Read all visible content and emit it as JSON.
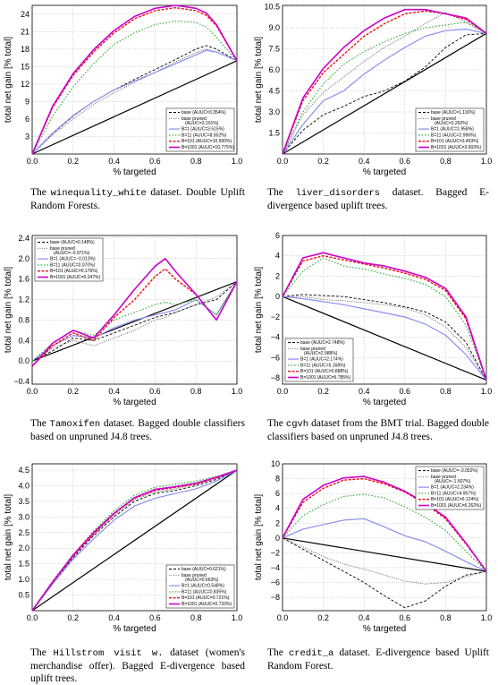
{
  "legend_names": [
    "base",
    "base pruned",
    "B=1",
    "B=11",
    "B=101",
    "B=1001"
  ],
  "series_styles": [
    {
      "color": "#000000",
      "dash": "3,2",
      "width": 0.9
    },
    {
      "color": "#555555",
      "dash": "1,1.5",
      "width": 0.9
    },
    {
      "color": "#8a8ff0",
      "dash": "",
      "width": 1.2
    },
    {
      "color": "#22aa22",
      "dash": "1.5,2",
      "width": 1.1
    },
    {
      "color": "#ee1111",
      "dash": "3,1.5",
      "width": 1.4
    },
    {
      "color": "#cc00cc",
      "dash": "",
      "width": 1.6
    }
  ],
  "captions": [
    {
      "pre": "The ",
      "ds": "winequality_white",
      "post": " dataset. Double Uplift Random Forests."
    },
    {
      "pre": "The ",
      "ds": "liver_disorders",
      "post": " dataset. Bagged E-divergence based uplift trees."
    },
    {
      "pre": "The ",
      "ds": "Tamoxifen",
      "post": " dataset. Bagged double classifiers based on unpruned J4.8 trees."
    },
    {
      "pre": "The ",
      "ds": "cgvh",
      "post": " dataset from the BMT trial. Bagged double classifiers based on unpruned J4.8 trees."
    },
    {
      "pre": "The ",
      "ds": "Hillstrom visit w.",
      "post": " dataset (women's merchandise offer). Bagged E-divergence based uplift trees."
    },
    {
      "pre": "The ",
      "ds": "credit_a",
      "post": " dataset. E-divergence based Uplift Random Forest."
    }
  ],
  "chart_data": [
    {
      "type": "line",
      "xlabel": "% targeted",
      "ylabel": "total net gain [% total]",
      "xlim": [
        0,
        1
      ],
      "ylim": [
        0,
        25.5
      ],
      "xticks": [
        "0.0",
        "0.2",
        "0.4",
        "0.6",
        "0.8",
        "1.0"
      ],
      "yticks": [
        3,
        6,
        9,
        12,
        15,
        18,
        21,
        24
      ],
      "legend_position": "bottom-right",
      "legend_labels": [
        "(AUUC=3.354%)",
        "(AUUC=3.101%)",
        "(AUUC=3.515%)",
        "(AUUC=8.552%)",
        "(AUUC=10.500%)",
        "(AUUC=10.775%)"
      ],
      "diagonal": [
        [
          0,
          0
        ],
        [
          1,
          16
        ]
      ],
      "x": [
        0,
        0.1,
        0.2,
        0.3,
        0.4,
        0.5,
        0.6,
        0.7,
        0.8,
        0.85,
        0.9,
        1.0
      ],
      "series": [
        {
          "values": [
            0,
            3.5,
            6.5,
            9,
            11,
            12.8,
            14.5,
            16.2,
            18,
            18.6,
            18,
            16
          ]
        },
        {
          "values": [
            0,
            3.3,
            6,
            8.5,
            10.5,
            12.3,
            14,
            15.8,
            17.4,
            18,
            17.5,
            16
          ]
        },
        {
          "values": [
            0,
            3.6,
            6.6,
            9,
            11,
            12.5,
            14,
            15.5,
            17,
            17.8,
            17.5,
            16
          ]
        },
        {
          "values": [
            0,
            6.5,
            11.5,
            15.5,
            18.8,
            20.8,
            22.2,
            22.8,
            22.6,
            21.8,
            20,
            16
          ]
        },
        {
          "values": [
            0,
            8,
            13.5,
            17.5,
            20.8,
            23.2,
            24.6,
            25.1,
            24.6,
            23.8,
            22,
            16
          ]
        },
        {
          "values": [
            0,
            8.2,
            13.8,
            17.9,
            21.2,
            23.6,
            25,
            25.5,
            25,
            24.2,
            22.2,
            16
          ]
        }
      ]
    },
    {
      "type": "line",
      "xlabel": "% targeted",
      "ylabel": "total net gain [% total]",
      "xlim": [
        0,
        1
      ],
      "ylim": [
        0,
        10.6
      ],
      "xticks": [
        "0.0",
        "0.2",
        "0.4",
        "0.6",
        "0.8",
        "1.0"
      ],
      "yticks": [
        1.5,
        3.0,
        4.5,
        6.0,
        7.5,
        9.0,
        10.5
      ],
      "legend_position": "bottom-right",
      "legend_labels": [
        "(AUUC=1.116%)",
        "(AUUC=2.262%)",
        "(AUUC=1.958%)",
        "(AUUC=2.996%)",
        "(AUUC=3.453%)",
        "(AUUC=3.603%)"
      ],
      "diagonal": [
        [
          0,
          0
        ],
        [
          1,
          8.6
        ]
      ],
      "x": [
        0,
        0.1,
        0.2,
        0.3,
        0.4,
        0.5,
        0.6,
        0.7,
        0.8,
        0.9,
        1.0
      ],
      "series": [
        {
          "values": [
            0,
            1.7,
            2.8,
            3.4,
            4.1,
            4.5,
            5.2,
            6.2,
            7.6,
            8.5,
            8.6
          ]
        },
        {
          "values": [
            0,
            2.8,
            4.4,
            5.5,
            6.6,
            7.6,
            8.4,
            9.3,
            10.1,
            9.4,
            8.6
          ]
        },
        {
          "values": [
            0,
            2.1,
            3.8,
            4.5,
            5.7,
            6.7,
            7.6,
            8.4,
            8.8,
            8.9,
            8.6
          ]
        },
        {
          "values": [
            0,
            3.0,
            5.0,
            6.4,
            7.3,
            8.0,
            8.6,
            9.0,
            9.2,
            9.4,
            8.6
          ]
        },
        {
          "values": [
            0,
            3.8,
            5.8,
            7.1,
            8.4,
            9.3,
            10.0,
            10.2,
            10.0,
            9.6,
            8.6
          ]
        },
        {
          "values": [
            0,
            4.0,
            6.1,
            7.6,
            8.8,
            9.7,
            10.3,
            10.3,
            10.0,
            9.7,
            8.6
          ]
        }
      ]
    },
    {
      "type": "line",
      "xlabel": "% targeted",
      "ylabel": "total net gain [% total]",
      "xlim": [
        0,
        1
      ],
      "ylim": [
        -0.45,
        2.45
      ],
      "xticks": [
        "0.0",
        "0.2",
        "0.4",
        "0.6",
        "0.8",
        "1.0"
      ],
      "yticks": [
        -0.4,
        0,
        0.4,
        0.8,
        1.2,
        1.6,
        2.0,
        2.4
      ],
      "ytick_labels": [
        "−0.4",
        "0.0",
        "0.4",
        "0.8",
        "1.2",
        "1.6",
        "2.0",
        "2.4"
      ],
      "legend_position": "top-left",
      "legend_labels": [
        "(AUUC=0.148%)",
        "(AUUC=−0.071%)",
        "(AUUC=−0.013%)",
        "(AUUC=0.070%)",
        "(AUUC=0.176%)",
        "(AUUC=0.247%)"
      ],
      "diagonal": [
        [
          0,
          0
        ],
        [
          1,
          1.55
        ]
      ],
      "x": [
        0,
        0.1,
        0.2,
        0.3,
        0.4,
        0.5,
        0.6,
        0.65,
        0.7,
        0.8,
        0.9,
        1.0
      ],
      "series": [
        {
          "values": [
            0,
            0.2,
            0.45,
            0.4,
            0.55,
            0.7,
            0.85,
            0.9,
            0.95,
            1.1,
            1.2,
            1.55
          ]
        },
        {
          "values": [
            0,
            0.25,
            0.4,
            0.3,
            0.45,
            0.6,
            0.8,
            0.85,
            0.95,
            1.1,
            1.25,
            1.55
          ]
        },
        {
          "values": [
            0,
            0.3,
            0.5,
            0.45,
            0.65,
            0.8,
            0.9,
            0.95,
            1.0,
            1.2,
            0.9,
            1.55
          ]
        },
        {
          "values": [
            0,
            0.35,
            0.6,
            0.5,
            0.8,
            0.95,
            1.1,
            1.15,
            1.1,
            1.2,
            0.9,
            1.55
          ]
        },
        {
          "values": [
            -0.1,
            0.3,
            0.55,
            0.4,
            0.85,
            1.2,
            1.65,
            1.8,
            1.6,
            1.3,
            0.8,
            1.55
          ]
        },
        {
          "values": [
            -0.1,
            0.35,
            0.6,
            0.45,
            0.9,
            1.4,
            1.85,
            2.0,
            1.75,
            1.3,
            0.8,
            1.55
          ]
        }
      ]
    },
    {
      "type": "line",
      "xlabel": "% targeted",
      "ylabel": "total net gain [% total]",
      "xlim": [
        0,
        1
      ],
      "ylim": [
        -8.6,
        6
      ],
      "xticks": [
        "0.0",
        "0.2",
        "0.4",
        "0.6",
        "0.8",
        "1.0"
      ],
      "yticks": [
        -8,
        -6,
        -4,
        -2,
        0,
        2,
        4,
        6
      ],
      "ytick_labels": [
        "−8",
        "−6",
        "−4",
        "−2",
        "0",
        "2",
        "4",
        "6"
      ],
      "legend_position": "bottom-left",
      "legend_labels": [
        "(AUUC=2.748%)",
        "(AUUC=2.988%)",
        "(AUUC=2.174%)",
        "(AUUC=5.168%)",
        "(AUUC=5.888%)",
        "(AUUC=5.785%)"
      ],
      "diagonal": [
        [
          0,
          0
        ],
        [
          1,
          -8.2
        ]
      ],
      "x": [
        0,
        0.1,
        0.2,
        0.3,
        0.4,
        0.5,
        0.6,
        0.7,
        0.8,
        0.9,
        1.0
      ],
      "series": [
        {
          "values": [
            0,
            0.2,
            0.1,
            0,
            -0.3,
            -0.6,
            -1.0,
            -1.5,
            -2.5,
            -4.5,
            -8.2
          ]
        },
        {
          "values": [
            0,
            0,
            -0.3,
            -0.4,
            -0.6,
            -0.8,
            -1.1,
            -1.8,
            -3.0,
            -5.0,
            -8.2
          ]
        },
        {
          "values": [
            0,
            -0.2,
            -0.5,
            -0.8,
            -1.2,
            -1.6,
            -2.0,
            -2.7,
            -3.8,
            -5.7,
            -8.2
          ]
        },
        {
          "values": [
            0,
            2.5,
            3.8,
            3.0,
            2.7,
            2.2,
            1.8,
            1.2,
            0.0,
            -2.8,
            -8.2
          ]
        },
        {
          "values": [
            0,
            3.5,
            4.0,
            3.6,
            3.2,
            2.8,
            2.3,
            1.7,
            0.6,
            -2.2,
            -8.2
          ]
        },
        {
          "values": [
            0,
            3.8,
            4.3,
            3.8,
            3.3,
            3.0,
            2.5,
            1.9,
            0.8,
            -2.0,
            -8.2
          ]
        }
      ]
    },
    {
      "type": "line",
      "xlabel": "% targeted",
      "ylabel": "total net gain [% total]",
      "xlim": [
        0,
        1
      ],
      "ylim": [
        0,
        4.7
      ],
      "xticks": [
        "0.0",
        "0.2",
        "0.4",
        "0.6",
        "0.8",
        "1.0"
      ],
      "yticks": [
        0.5,
        1.0,
        1.5,
        2.0,
        2.5,
        3.0,
        3.5,
        4.0,
        4.5
      ],
      "legend_position": "bottom-right",
      "legend_labels": [
        "(AUUC=0.621%)",
        "(AUUC=0.663%)",
        "(AUUC=0.548%)",
        "(AUUC=0.835%)",
        "(AUUC=0.721%)",
        "(AUUC=0.733%)"
      ],
      "diagonal": [
        [
          0,
          0
        ],
        [
          1,
          4.5
        ]
      ],
      "x": [
        0,
        0.1,
        0.2,
        0.3,
        0.4,
        0.5,
        0.6,
        0.7,
        0.8,
        0.9,
        1.0
      ],
      "series": [
        {
          "values": [
            0,
            0.9,
            1.7,
            2.4,
            3.0,
            3.5,
            3.75,
            3.85,
            4.0,
            4.2,
            4.5
          ]
        },
        {
          "values": [
            0,
            0.9,
            1.75,
            2.45,
            3.05,
            3.55,
            3.8,
            3.9,
            4.05,
            4.25,
            4.5
          ]
        },
        {
          "values": [
            0,
            0.85,
            1.65,
            2.3,
            2.9,
            3.35,
            3.6,
            3.75,
            3.9,
            4.15,
            4.5
          ]
        },
        {
          "values": [
            0,
            0.95,
            1.8,
            2.55,
            3.2,
            3.7,
            3.95,
            4.05,
            4.15,
            4.3,
            4.5
          ]
        },
        {
          "values": [
            0,
            0.9,
            1.75,
            2.45,
            3.1,
            3.6,
            3.85,
            3.95,
            4.05,
            4.25,
            4.5
          ]
        },
        {
          "values": [
            0,
            0.92,
            1.78,
            2.5,
            3.12,
            3.62,
            3.88,
            3.97,
            4.08,
            4.27,
            4.5
          ]
        }
      ]
    },
    {
      "type": "line",
      "xlabel": "% targeted",
      "ylabel": "total net gain [% total]",
      "xlim": [
        0,
        1
      ],
      "ylim": [
        -9.8,
        10
      ],
      "xticks": [
        "0.0",
        "0.2",
        "0.4",
        "0.6",
        "0.8",
        "1.0"
      ],
      "yticks": [
        -8,
        -6,
        -4,
        -2,
        0,
        2,
        4,
        6,
        8,
        10
      ],
      "ytick_labels": [
        "−8",
        "−6",
        "−4",
        "−2",
        "0",
        "2",
        "4",
        "6",
        "8",
        "10"
      ],
      "legend_position": "top-right",
      "legend_labels": [
        "(AUUC=−3.052%)",
        "(AUUC=−1.507%)",
        "(AUUC=2.234%)",
        "(AUUC=4.957%)",
        "(AUUC=6.124%)",
        "(AUUC=6.262%)"
      ],
      "diagonal": [
        [
          0,
          0
        ],
        [
          1,
          -4.5
        ]
      ],
      "x": [
        0,
        0.1,
        0.2,
        0.3,
        0.4,
        0.5,
        0.6,
        0.7,
        0.8,
        0.9,
        1.0
      ],
      "series": [
        {
          "values": [
            0,
            -1.5,
            -3.0,
            -4.5,
            -6.0,
            -7.8,
            -9.4,
            -8.5,
            -6.5,
            -5.0,
            -4.5
          ]
        },
        {
          "values": [
            0,
            -1.2,
            -2.5,
            -3.5,
            -4.2,
            -5.0,
            -5.8,
            -6.2,
            -6.0,
            -5.2,
            -4.5
          ]
        },
        {
          "values": [
            0,
            1.2,
            1.8,
            2.4,
            2.6,
            1.5,
            0.3,
            -0.5,
            -1.8,
            -3.2,
            -4.5
          ]
        },
        {
          "values": [
            0,
            3.0,
            4.5,
            5.6,
            5.9,
            5.4,
            4.2,
            2.8,
            1.0,
            -1.8,
            -4.5
          ]
        },
        {
          "values": [
            0,
            4.8,
            6.7,
            7.8,
            8.0,
            7.3,
            6.2,
            4.6,
            2.6,
            -0.8,
            -4.5
          ]
        },
        {
          "values": [
            0,
            5.2,
            7.1,
            8.1,
            8.3,
            7.5,
            6.3,
            4.7,
            2.8,
            -0.7,
            -4.5
          ]
        }
      ]
    }
  ]
}
